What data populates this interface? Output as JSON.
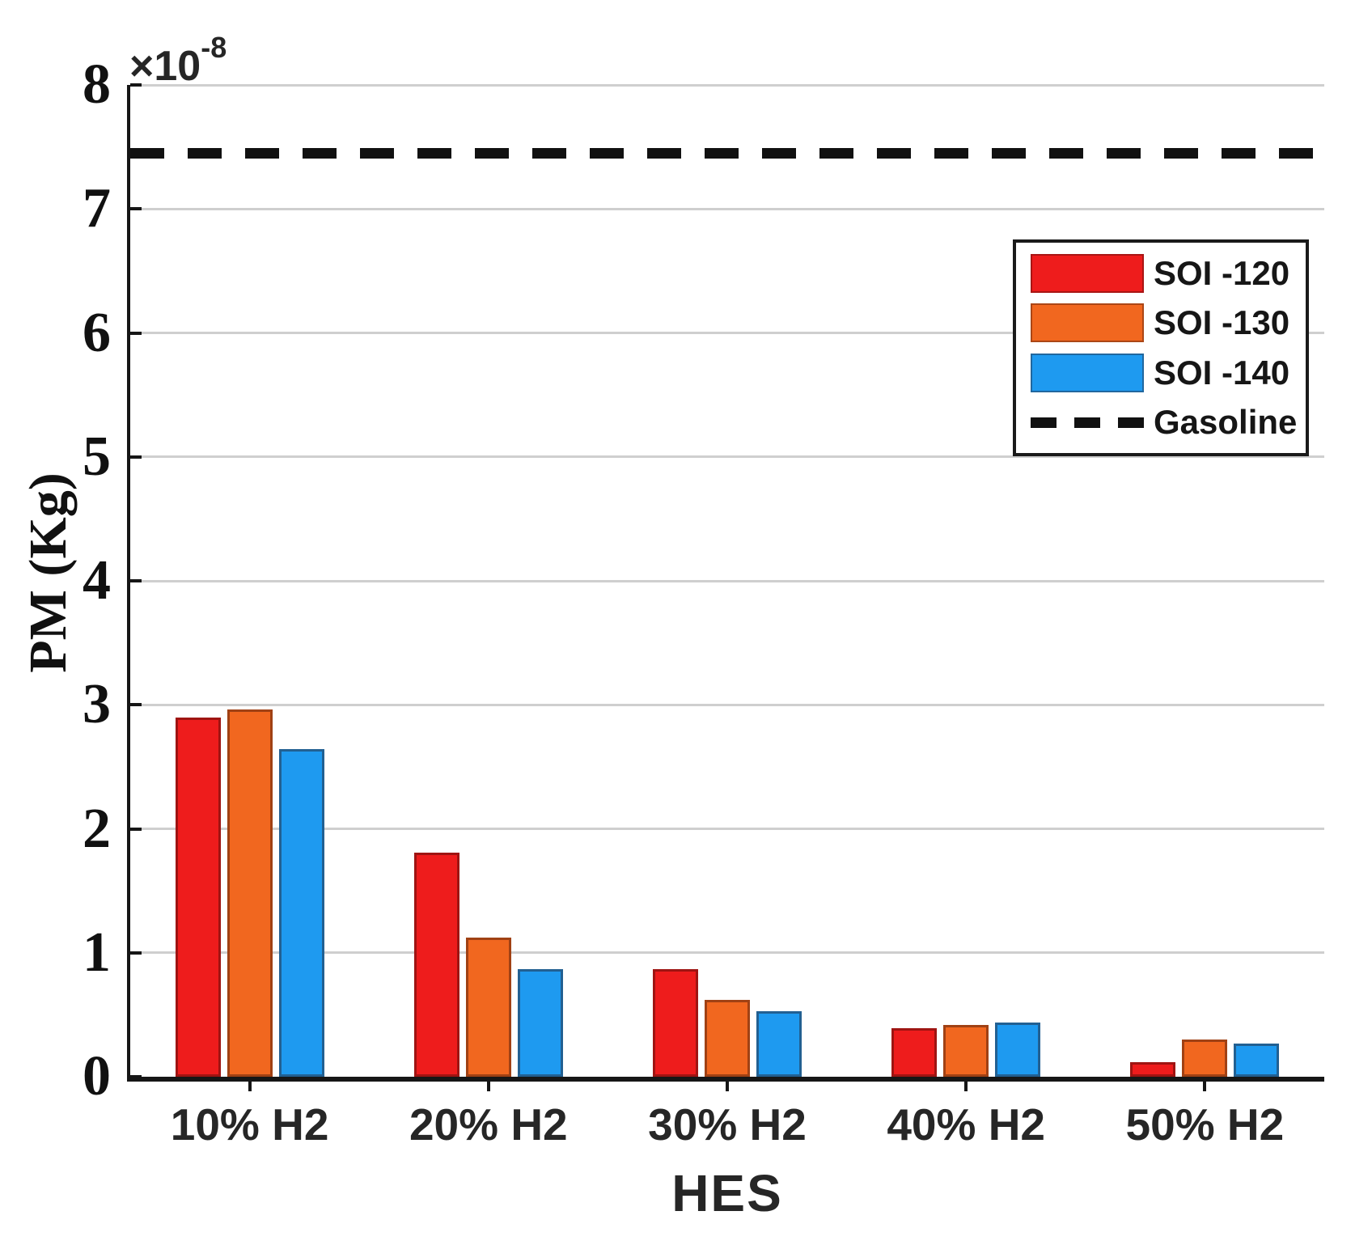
{
  "chart_data": {
    "type": "bar",
    "title": "",
    "xlabel": "HES",
    "ylabel": "PM (Kg)",
    "exponent": {
      "multiplier": "×10",
      "exponent": "-8"
    },
    "categories": [
      "10% H2",
      "20% H2",
      "30% H2",
      "40% H2",
      "50% H2"
    ],
    "series": [
      {
        "name": "SOI -120",
        "color": "#ee1c1c",
        "values": [
          2.9,
          1.81,
          0.87,
          0.39,
          0.12
        ]
      },
      {
        "name": "SOI -130",
        "color": "#f1671f",
        "values": [
          2.96,
          1.12,
          0.62,
          0.42,
          0.3
        ]
      },
      {
        "name": "SOI -140",
        "color": "#1e9af0",
        "values": [
          2.64,
          0.87,
          0.53,
          0.44,
          0.27
        ]
      }
    ],
    "reference_line": {
      "name": "Gasoline",
      "value": 7.45,
      "style": "dashed",
      "color": "#111111"
    },
    "ylim": [
      0,
      8
    ],
    "yticks": [
      0,
      1,
      2,
      3,
      4,
      5,
      6,
      7,
      8
    ],
    "grid": true,
    "legend_position": "upper-right",
    "axis_colors": {
      "grid": "#cfcfcf",
      "spine": "#161616",
      "text": "#111111"
    }
  }
}
